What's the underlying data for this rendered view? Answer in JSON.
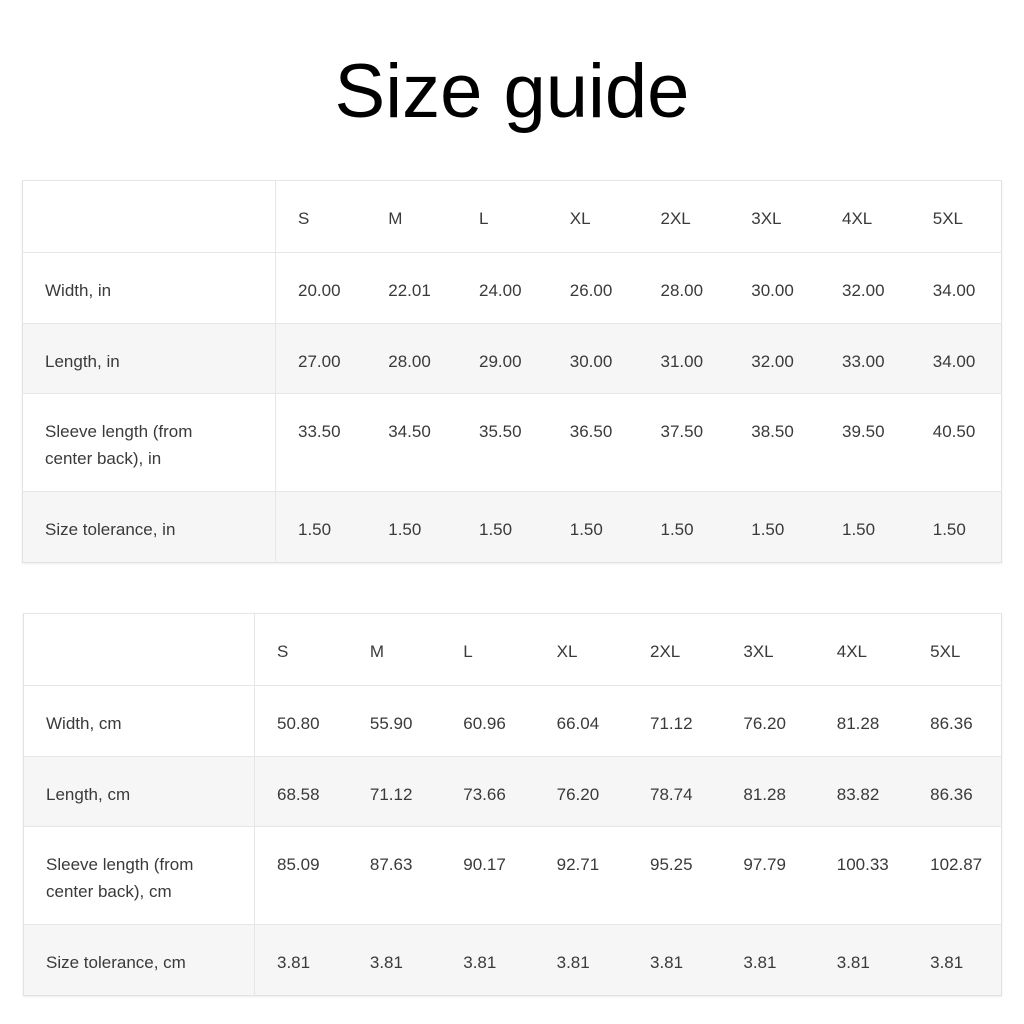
{
  "title": "Size guide",
  "tables": [
    {
      "sizes": [
        "S",
        "M",
        "L",
        "XL",
        "2XL",
        "3XL",
        "4XL",
        "5XL"
      ],
      "rows": [
        {
          "label": "Width, in",
          "values": [
            "20.00",
            "22.01",
            "24.00",
            "26.00",
            "28.00",
            "30.00",
            "32.00",
            "34.00"
          ]
        },
        {
          "label": "Length, in",
          "values": [
            "27.00",
            "28.00",
            "29.00",
            "30.00",
            "31.00",
            "32.00",
            "33.00",
            "34.00"
          ]
        },
        {
          "label": "Sleeve length (from center back), in",
          "values": [
            "33.50",
            "34.50",
            "35.50",
            "36.50",
            "37.50",
            "38.50",
            "39.50",
            "40.50"
          ]
        },
        {
          "label": "Size tolerance, in",
          "values": [
            "1.50",
            "1.50",
            "1.50",
            "1.50",
            "1.50",
            "1.50",
            "1.50",
            "1.50"
          ]
        }
      ]
    },
    {
      "sizes": [
        "S",
        "M",
        "L",
        "XL",
        "2XL",
        "3XL",
        "4XL",
        "5XL"
      ],
      "rows": [
        {
          "label": "Width, cm",
          "values": [
            "50.80",
            "55.90",
            "60.96",
            "66.04",
            "71.12",
            "76.20",
            "81.28",
            "86.36"
          ]
        },
        {
          "label": "Length, cm",
          "values": [
            "68.58",
            "71.12",
            "73.66",
            "76.20",
            "78.74",
            "81.28",
            "83.82",
            "86.36"
          ]
        },
        {
          "label": "Sleeve length (from center back), cm",
          "values": [
            "85.09",
            "87.63",
            "90.17",
            "92.71",
            "95.25",
            "97.79",
            "100.33",
            "102.87"
          ]
        },
        {
          "label": "Size tolerance, cm",
          "values": [
            "3.81",
            "3.81",
            "3.81",
            "3.81",
            "3.81",
            "3.81",
            "3.81",
            "3.81"
          ]
        }
      ]
    }
  ]
}
